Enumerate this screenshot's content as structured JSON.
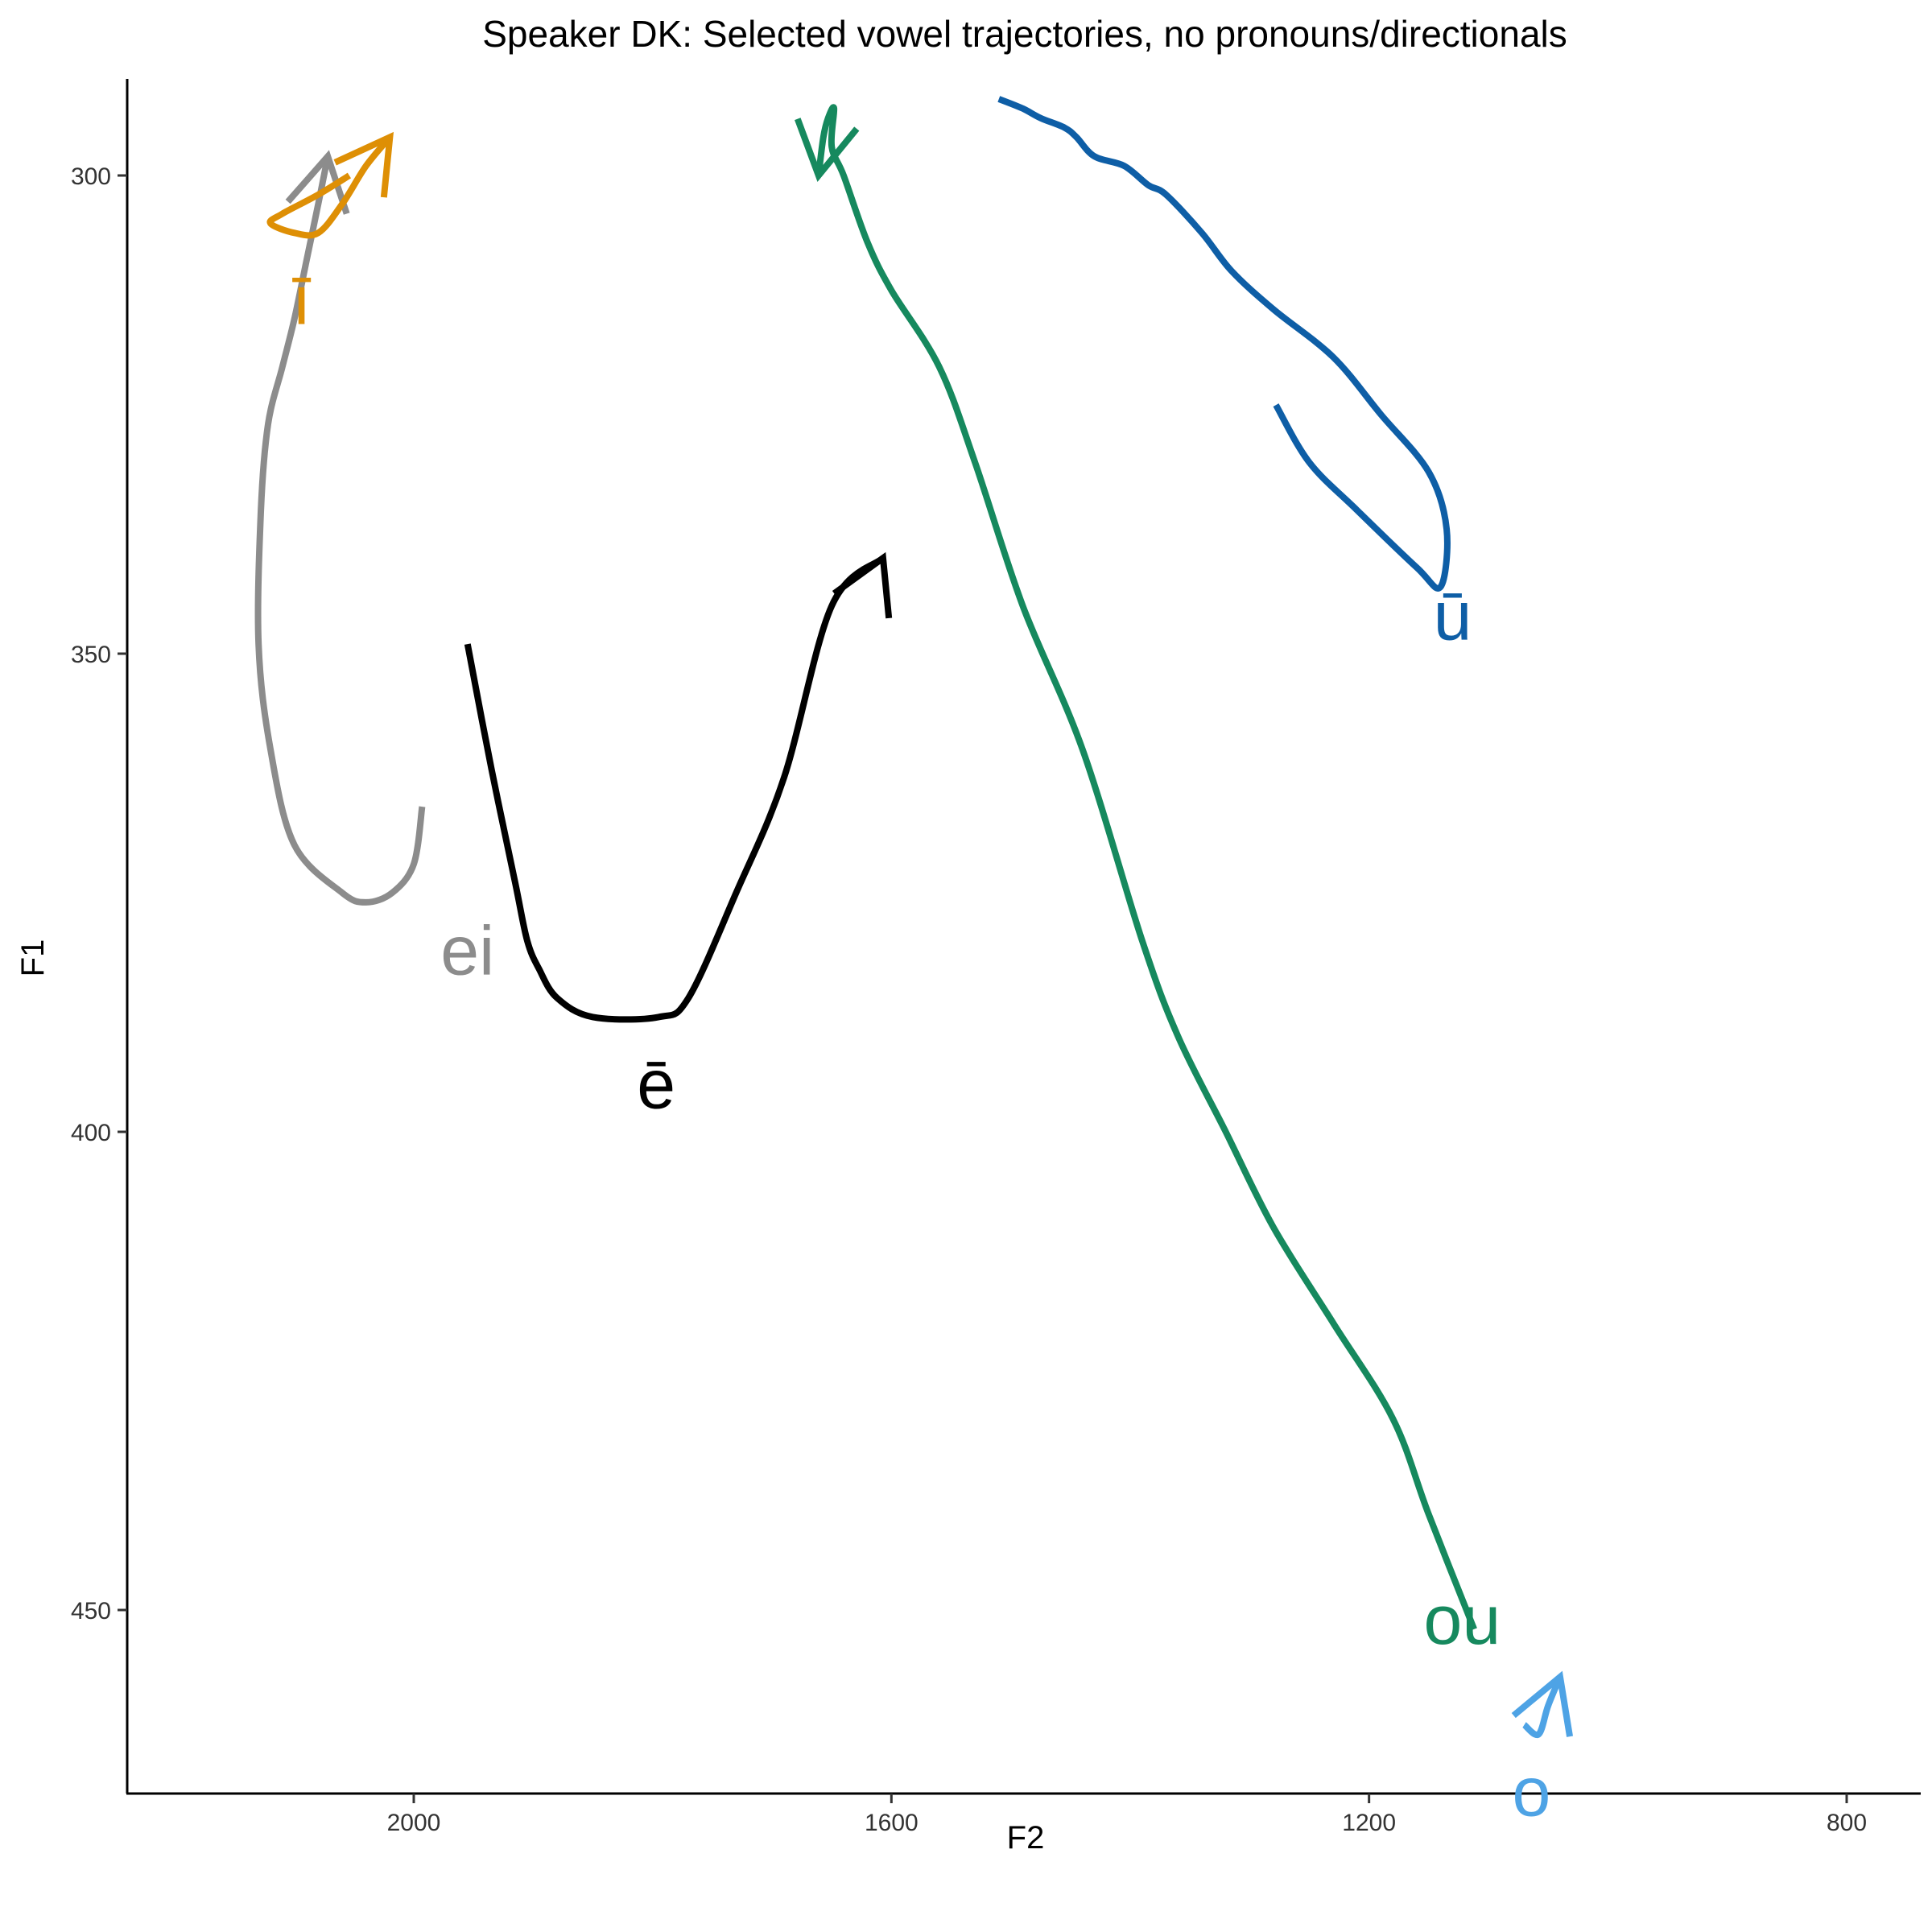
{
  "chart_data": {
    "type": "line",
    "title": "Speaker DK: Selected vowel trajectories, no pronouns/directionals",
    "xlabel": "F2",
    "ylabel": "F1",
    "x_reversed": true,
    "y_reversed": true,
    "xlim": [
      2120,
      770
    ],
    "ylim": [
      290,
      474
    ],
    "x_ticks": [
      2000,
      1600,
      1200,
      800
    ],
    "y_ticks": [
      300,
      350,
      400,
      450
    ],
    "grid": false,
    "legend": "none",
    "series": [
      {
        "name": "ei",
        "color": "#8c8c8c",
        "label_at": [
          1955,
          381
        ],
        "points": [
          [
            1993,
            366
          ],
          [
            2000,
            372
          ],
          [
            2018,
            375
          ],
          [
            2040,
            376
          ],
          [
            2060,
            375
          ],
          [
            2100,
            370
          ],
          [
            2120,
            360
          ],
          [
            2130,
            349
          ],
          [
            2128,
            335
          ],
          [
            2122,
            326
          ],
          [
            2110,
            320
          ],
          [
            2100,
            315
          ],
          [
            2090,
            309
          ],
          [
            2080,
            303
          ],
          [
            2072,
            298
          ]
        ],
        "arrow": true
      },
      {
        "name": "ī",
        "color": "#de8f05",
        "label_at": [
          2094,
          313
        ],
        "points": [
          [
            2054,
            300
          ],
          [
            2080,
            302
          ],
          [
            2110,
            304
          ],
          [
            2120,
            305
          ],
          [
            2100,
            306
          ],
          [
            2080,
            306
          ],
          [
            2060,
            303
          ],
          [
            2040,
            299
          ],
          [
            2020,
            296
          ]
        ],
        "arrow": true
      },
      {
        "name": "ē",
        "color": "#000000",
        "label_at": [
          1797,
          395
        ],
        "points": [
          [
            1955,
            349
          ],
          [
            1935,
            362
          ],
          [
            1915,
            374
          ],
          [
            1905,
            380
          ],
          [
            1895,
            383
          ],
          [
            1880,
            386
          ],
          [
            1850,
            388
          ],
          [
            1795,
            388
          ],
          [
            1770,
            386
          ],
          [
            1730,
            375
          ],
          [
            1690,
            363
          ],
          [
            1650,
            345
          ],
          [
            1607,
            340
          ]
        ],
        "arrow": true
      },
      {
        "name": "ū",
        "color": "#0e5ea6",
        "label_at": [
          1130,
          346
        ],
        "points": [
          [
            1278,
            324
          ],
          [
            1250,
            330
          ],
          [
            1210,
            335
          ],
          [
            1160,
            341
          ],
          [
            1140,
            343
          ],
          [
            1135,
            337
          ],
          [
            1150,
            331
          ],
          [
            1190,
            325
          ],
          [
            1230,
            319
          ],
          [
            1280,
            314
          ],
          [
            1315,
            310
          ],
          [
            1340,
            306
          ],
          [
            1370,
            302
          ],
          [
            1385,
            301
          ],
          [
            1405,
            299
          ],
          [
            1430,
            298
          ],
          [
            1445,
            296
          ],
          [
            1455,
            295
          ],
          [
            1475,
            294
          ],
          [
            1490,
            293
          ],
          [
            1510,
            292
          ]
        ],
        "arrow": false
      },
      {
        "name": "ou",
        "color": "#16895e",
        "label_at": [
          1122,
          451
        ],
        "points": [
          [
            1112,
            452
          ],
          [
            1150,
            440
          ],
          [
            1180,
            430
          ],
          [
            1230,
            420
          ],
          [
            1280,
            410
          ],
          [
            1320,
            400
          ],
          [
            1360,
            390
          ],
          [
            1390,
            380
          ],
          [
            1440,
            360
          ],
          [
            1490,
            345
          ],
          [
            1530,
            330
          ],
          [
            1560,
            320
          ],
          [
            1600,
            312
          ],
          [
            1620,
            307
          ],
          [
            1640,
            300
          ],
          [
            1650,
            297
          ],
          [
            1648,
            293
          ],
          [
            1653,
            294
          ],
          [
            1657,
            296
          ],
          [
            1661,
            300
          ]
        ],
        "arrow": true
      },
      {
        "name": "o",
        "color": "#4ea3e5",
        "label_at": [
          1064,
          469
        ],
        "points": [
          [
            1070,
            462
          ],
          [
            1058,
            463
          ],
          [
            1050,
            460
          ],
          [
            1040,
            457
          ]
        ],
        "arrow": true
      }
    ],
    "labels": [
      "ei",
      "ī",
      "ē",
      "ū",
      "ou",
      "o"
    ]
  }
}
